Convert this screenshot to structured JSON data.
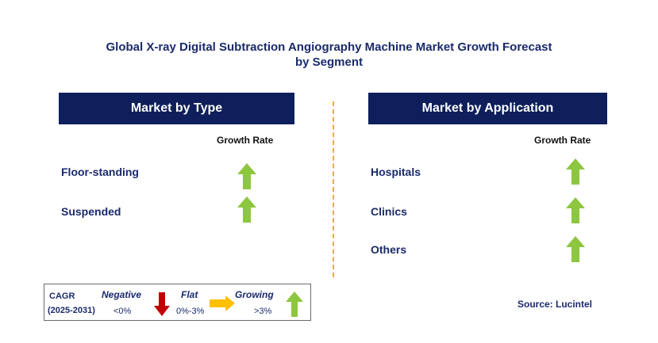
{
  "title_line1": "Global X-ray Digital Subtraction Angiography Machine Market Growth Forecast",
  "title_line2": "by Segment",
  "left_panel": {
    "header": "Market by Type",
    "column_label": "Growth Rate",
    "items": [
      {
        "label": "Floor-standing",
        "trend": "growing"
      },
      {
        "label": "Suspended",
        "trend": "growing"
      }
    ]
  },
  "right_panel": {
    "header": "Market by Application",
    "column_label": "Growth Rate",
    "items": [
      {
        "label": "Hospitals",
        "trend": "growing"
      },
      {
        "label": "Clinics",
        "trend": "growing"
      },
      {
        "label": "Others",
        "trend": "growing"
      }
    ]
  },
  "legend": {
    "cagr_label": "CAGR",
    "period": "(2025-2031)",
    "negative_label": "Negative",
    "negative_range": "<0%",
    "flat_label": "Flat",
    "flat_range": "0%-3%",
    "growing_label": "Growing",
    "growing_range": ">3%"
  },
  "source": "Source: Lucintel",
  "colors": {
    "header_bg": "#0e1f5b",
    "growing_arrow": "#8dc63f",
    "negative_arrow": "#c00000",
    "flat_arrow": "#ffc000",
    "divider": "#f0b400"
  }
}
